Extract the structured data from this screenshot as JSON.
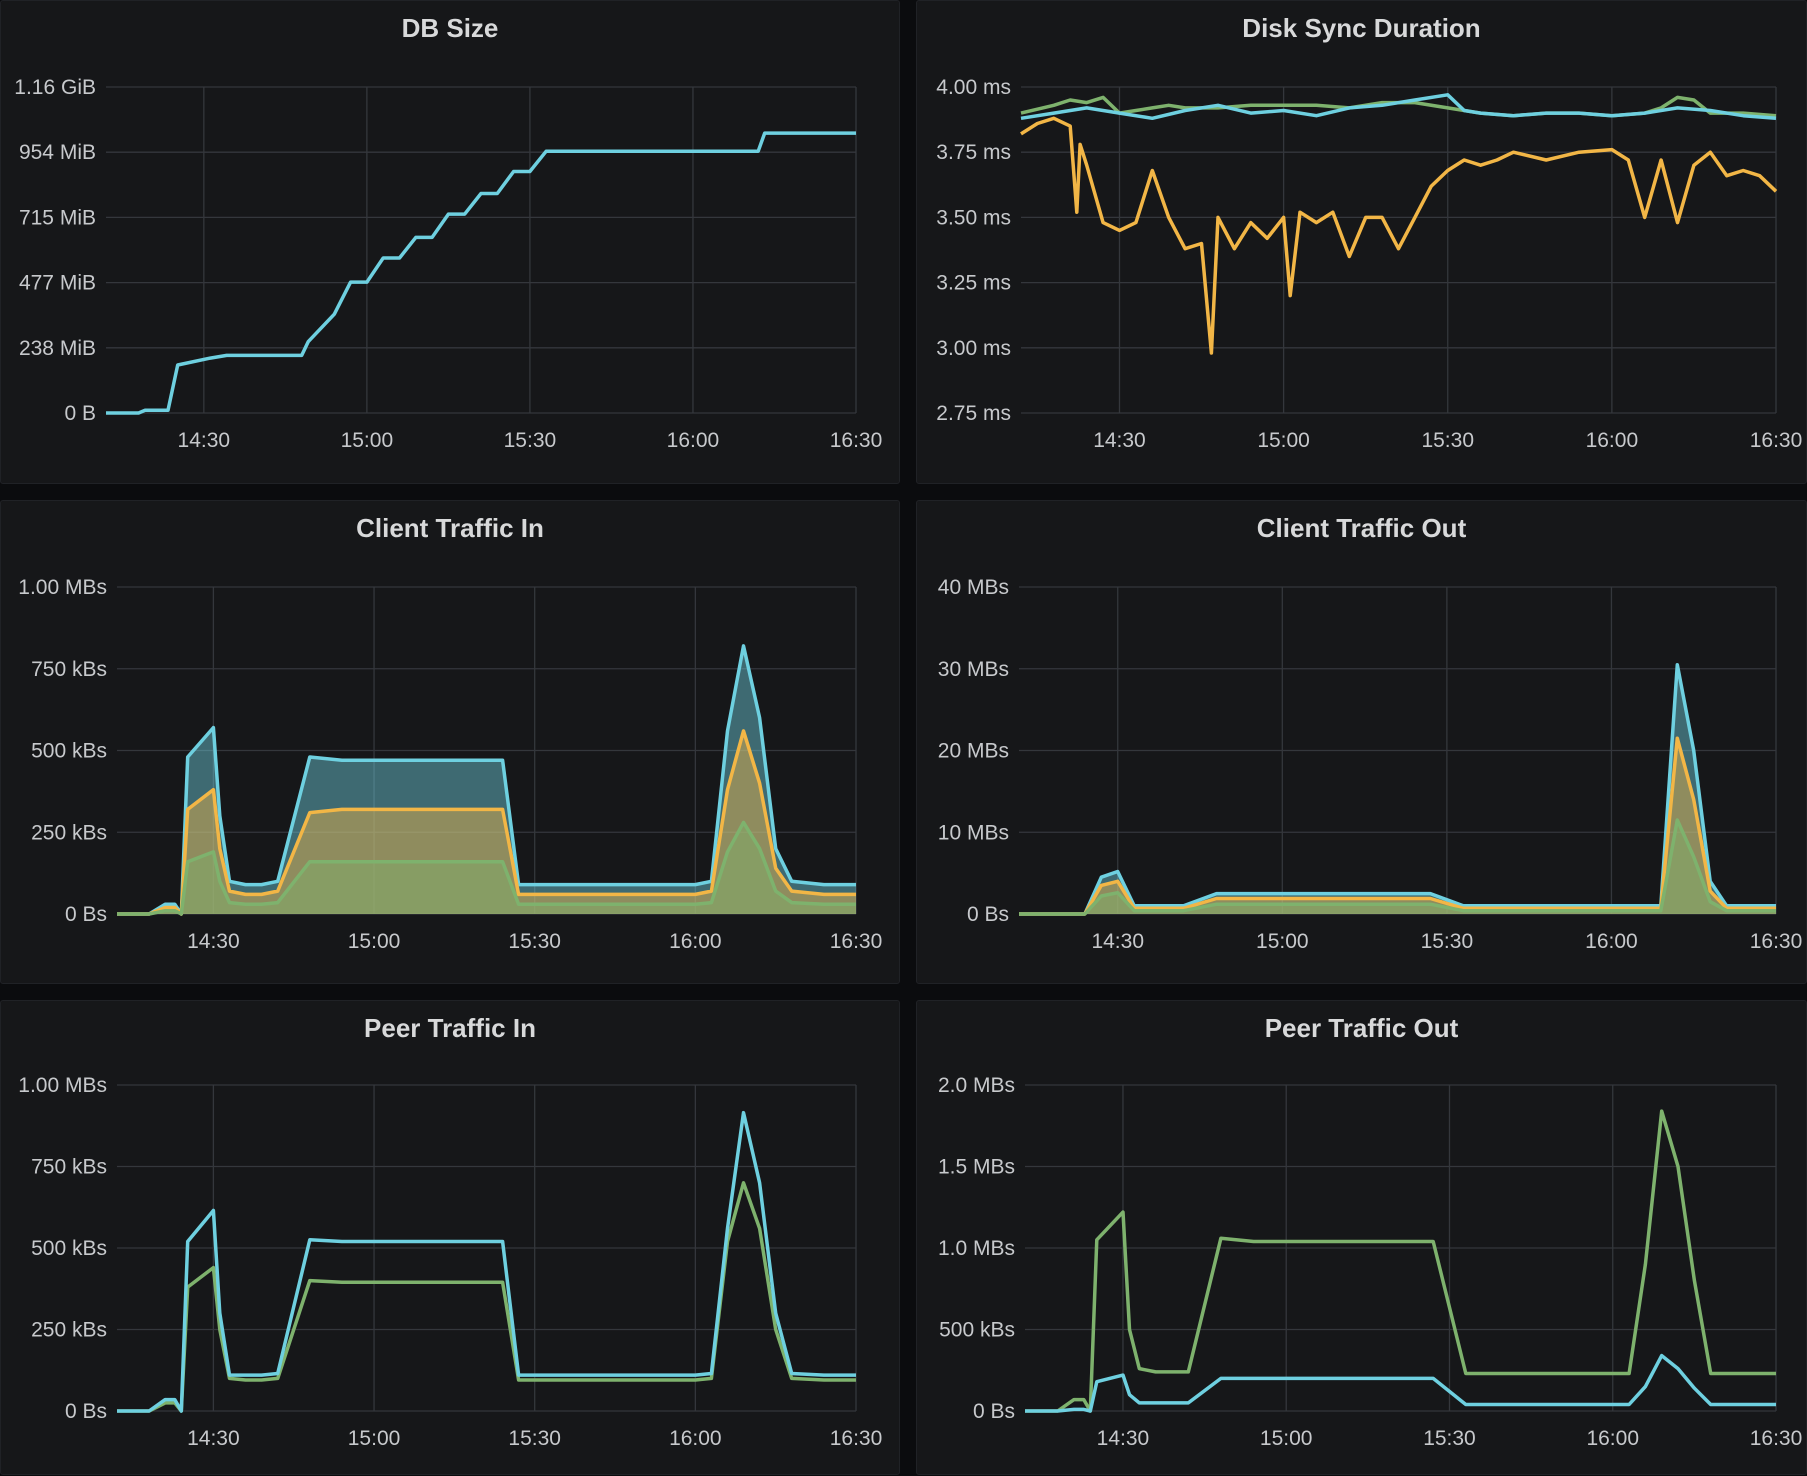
{
  "colors": {
    "cyan": "#6ed0e0",
    "orange": "#f2b646",
    "green": "#7eb26d",
    "grid": "#34373c",
    "text": "#c7c9cc"
  },
  "chart_data": [
    {
      "type": "line",
      "title": "DB Size",
      "xlabel": "",
      "ylabel": "",
      "xticks": [
        "14:30",
        "15:00",
        "15:30",
        "16:00",
        "16:30"
      ],
      "yticks": [
        "0 B",
        "238 MiB",
        "477 MiB",
        "715 MiB",
        "954 MiB",
        "1.16 GiB"
      ],
      "xlim": [
        14.2,
        16.5
      ],
      "ylim": [
        0,
        1188
      ],
      "fill": false,
      "series": [
        {
          "color": "#6ed0e0",
          "x": [
            14.2,
            14.3,
            14.32,
            14.39,
            14.42,
            14.52,
            14.57,
            14.58,
            14.7,
            14.8,
            14.82,
            14.9,
            14.95,
            15,
            15.05,
            15.1,
            15.15,
            15.2,
            15.25,
            15.3,
            15.35,
            15.4,
            15.45,
            15.5,
            15.55,
            15.65,
            16.2,
            16.22,
            16.5
          ],
          "y": [
            0,
            0,
            10,
            10,
            175,
            200,
            210,
            210,
            210,
            210,
            260,
            360,
            477,
            477,
            565,
            565,
            640,
            640,
            725,
            725,
            800,
            800,
            880,
            880,
            954,
            954,
            954,
            1020,
            1020
          ]
        }
      ]
    },
    {
      "type": "line",
      "title": "Disk Sync Duration",
      "xlabel": "",
      "ylabel": "",
      "xticks": [
        "14:30",
        "15:00",
        "15:30",
        "16:00",
        "16:30"
      ],
      "yticks": [
        "2.75 ms",
        "3.00 ms",
        "3.25 ms",
        "3.50 ms",
        "3.75 ms",
        "4.00 ms"
      ],
      "xlim": [
        14.2,
        16.5
      ],
      "ylim": [
        2.75,
        4.0
      ],
      "fill": false,
      "series": [
        {
          "color": "#7eb26d",
          "x": [
            14.2,
            14.3,
            14.35,
            14.4,
            14.45,
            14.5,
            14.55,
            14.6,
            14.65,
            14.7,
            14.8,
            14.9,
            15,
            15.1,
            15.2,
            15.3,
            15.4,
            15.5,
            15.6,
            15.7,
            15.8,
            15.9,
            16,
            16.1,
            16.15,
            16.2,
            16.25,
            16.3,
            16.4,
            16.5
          ],
          "y": [
            3.9,
            3.93,
            3.95,
            3.94,
            3.96,
            3.9,
            3.91,
            3.92,
            3.93,
            3.92,
            3.92,
            3.93,
            3.93,
            3.93,
            3.92,
            3.94,
            3.94,
            3.92,
            3.9,
            3.89,
            3.9,
            3.9,
            3.89,
            3.9,
            3.92,
            3.96,
            3.95,
            3.9,
            3.9,
            3.89
          ]
        },
        {
          "color": "#6ed0e0",
          "x": [
            14.2,
            14.3,
            14.4,
            14.5,
            14.6,
            14.7,
            14.8,
            14.9,
            15,
            15.1,
            15.2,
            15.3,
            15.4,
            15.5,
            15.55,
            15.6,
            15.7,
            15.8,
            15.9,
            16,
            16.1,
            16.2,
            16.3,
            16.4,
            16.5
          ],
          "y": [
            3.88,
            3.9,
            3.92,
            3.9,
            3.88,
            3.91,
            3.93,
            3.9,
            3.91,
            3.89,
            3.92,
            3.93,
            3.95,
            3.97,
            3.91,
            3.9,
            3.89,
            3.9,
            3.9,
            3.89,
            3.9,
            3.92,
            3.91,
            3.89,
            3.88
          ]
        },
        {
          "color": "#f2b646",
          "x": [
            14.2,
            14.25,
            14.3,
            14.35,
            14.37,
            14.38,
            14.4,
            14.45,
            14.5,
            14.55,
            14.6,
            14.65,
            14.7,
            14.75,
            14.78,
            14.8,
            14.85,
            14.9,
            14.95,
            15,
            15.02,
            15.05,
            15.1,
            15.15,
            15.2,
            15.25,
            15.3,
            15.35,
            15.4,
            15.45,
            15.5,
            15.55,
            15.6,
            15.65,
            15.7,
            15.8,
            15.9,
            16,
            16.05,
            16.1,
            16.15,
            16.2,
            16.25,
            16.3,
            16.35,
            16.4,
            16.45,
            16.5
          ],
          "y": [
            3.82,
            3.86,
            3.88,
            3.85,
            3.52,
            3.78,
            3.7,
            3.48,
            3.45,
            3.48,
            3.68,
            3.5,
            3.38,
            3.4,
            2.98,
            3.5,
            3.38,
            3.48,
            3.42,
            3.5,
            3.2,
            3.52,
            3.48,
            3.52,
            3.35,
            3.5,
            3.5,
            3.38,
            3.5,
            3.62,
            3.68,
            3.72,
            3.7,
            3.72,
            3.75,
            3.72,
            3.75,
            3.76,
            3.72,
            3.5,
            3.72,
            3.48,
            3.7,
            3.75,
            3.66,
            3.68,
            3.66,
            3.6
          ]
        }
      ]
    },
    {
      "type": "area",
      "title": "Client Traffic In",
      "xlabel": "",
      "ylabel": "",
      "xticks": [
        "14:30",
        "15:00",
        "15:30",
        "16:00",
        "16:30"
      ],
      "yticks": [
        "0 Bs",
        "250 kBs",
        "500 kBs",
        "750 kBs",
        "1.00 MBs"
      ],
      "xlim": [
        14.2,
        16.5
      ],
      "ylim": [
        0,
        1000
      ],
      "fill": true,
      "series": [
        {
          "color": "#6ed0e0",
          "x": [
            14.2,
            14.3,
            14.35,
            14.38,
            14.4,
            14.42,
            14.5,
            14.52,
            14.55,
            14.6,
            14.65,
            14.7,
            14.8,
            14.9,
            15,
            15.1,
            15.2,
            15.3,
            15.35,
            15.4,
            15.45,
            15.55,
            15.7,
            15.9,
            16,
            16.05,
            16.1,
            16.15,
            16.2,
            16.25,
            16.3,
            16.4,
            16.5
          ],
          "y": [
            0,
            0,
            30,
            30,
            0,
            480,
            570,
            300,
            100,
            90,
            90,
            100,
            480,
            470,
            470,
            470,
            470,
            470,
            470,
            470,
            90,
            90,
            90,
            90,
            90,
            100,
            560,
            820,
            600,
            200,
            100,
            90,
            90
          ]
        },
        {
          "color": "#f2b646",
          "x": [
            14.2,
            14.3,
            14.35,
            14.38,
            14.4,
            14.42,
            14.5,
            14.52,
            14.55,
            14.6,
            14.65,
            14.7,
            14.8,
            14.9,
            15,
            15.1,
            15.2,
            15.3,
            15.35,
            15.4,
            15.45,
            15.55,
            15.7,
            15.9,
            16,
            16.05,
            16.1,
            16.15,
            16.2,
            16.25,
            16.3,
            16.4,
            16.5
          ],
          "y": [
            0,
            0,
            20,
            20,
            0,
            320,
            380,
            200,
            70,
            60,
            60,
            70,
            310,
            320,
            320,
            320,
            320,
            320,
            320,
            320,
            60,
            60,
            60,
            60,
            60,
            70,
            380,
            560,
            400,
            140,
            70,
            60,
            60
          ]
        },
        {
          "color": "#7eb26d",
          "x": [
            14.2,
            14.3,
            14.35,
            14.38,
            14.4,
            14.42,
            14.5,
            14.52,
            14.55,
            14.6,
            14.65,
            14.7,
            14.8,
            14.9,
            15,
            15.1,
            15.2,
            15.3,
            15.35,
            15.4,
            15.45,
            15.55,
            15.7,
            15.9,
            16,
            16.05,
            16.1,
            16.15,
            16.2,
            16.25,
            16.3,
            16.4,
            16.5
          ],
          "y": [
            0,
            0,
            10,
            10,
            0,
            160,
            190,
            100,
            35,
            30,
            30,
            35,
            160,
            160,
            160,
            160,
            160,
            160,
            160,
            160,
            30,
            30,
            30,
            30,
            30,
            35,
            190,
            280,
            200,
            70,
            35,
            30,
            30
          ]
        }
      ]
    },
    {
      "type": "area",
      "title": "Client Traffic Out",
      "xlabel": "",
      "ylabel": "",
      "xticks": [
        "14:30",
        "15:00",
        "15:30",
        "16:00",
        "16:30"
      ],
      "yticks": [
        "0 Bs",
        "10 MBs",
        "20 MBs",
        "30 MBs",
        "40 MBs"
      ],
      "xlim": [
        14.2,
        16.5
      ],
      "ylim": [
        0,
        40
      ],
      "fill": true,
      "series": [
        {
          "color": "#6ed0e0",
          "x": [
            14.2,
            14.4,
            14.45,
            14.5,
            14.55,
            14.7,
            14.8,
            14.9,
            15.3,
            15.45,
            15.55,
            15.9,
            16.05,
            16.15,
            16.2,
            16.25,
            16.3,
            16.35,
            16.4,
            16.5
          ],
          "y": [
            0,
            0,
            4.5,
            5.2,
            1,
            1,
            2.5,
            2.5,
            2.5,
            2.5,
            1,
            1,
            1,
            1,
            30.5,
            20,
            4,
            1,
            1,
            1
          ]
        },
        {
          "color": "#f2b646",
          "x": [
            14.2,
            14.4,
            14.45,
            14.5,
            14.55,
            14.7,
            14.8,
            14.9,
            15.3,
            15.45,
            15.55,
            15.9,
            16.05,
            16.15,
            16.2,
            16.25,
            16.3,
            16.35,
            16.4,
            16.5
          ],
          "y": [
            0,
            0,
            3.5,
            4,
            0.7,
            0.7,
            1.9,
            1.9,
            1.9,
            1.9,
            0.7,
            0.7,
            0.7,
            0.7,
            21.5,
            14,
            2.8,
            0.7,
            0.7,
            0.7
          ]
        },
        {
          "color": "#7eb26d",
          "x": [
            14.2,
            14.4,
            14.45,
            14.5,
            14.55,
            14.7,
            14.8,
            14.9,
            15.3,
            15.45,
            15.55,
            15.9,
            16.05,
            16.15,
            16.2,
            16.25,
            16.3,
            16.35,
            16.4,
            16.5
          ],
          "y": [
            0,
            0,
            2.2,
            2.6,
            0.4,
            0.4,
            1.2,
            1.2,
            1.2,
            1.2,
            0.4,
            0.4,
            0.4,
            0.4,
            11.5,
            7,
            1.5,
            0.4,
            0.4,
            0.4
          ]
        }
      ]
    },
    {
      "type": "line",
      "title": "Peer Traffic In",
      "xlabel": "",
      "ylabel": "",
      "xticks": [
        "14:30",
        "15:00",
        "15:30",
        "16:00",
        "16:30"
      ],
      "yticks": [
        "0 Bs",
        "250 kBs",
        "500 kBs",
        "750 kBs",
        "1.00 MBs"
      ],
      "xlim": [
        14.2,
        16.5
      ],
      "ylim": [
        0,
        1000
      ],
      "fill": false,
      "series": [
        {
          "color": "#7eb26d",
          "x": [
            14.2,
            14.3,
            14.35,
            14.38,
            14.4,
            14.42,
            14.5,
            14.52,
            14.55,
            14.6,
            14.65,
            14.7,
            14.8,
            14.9,
            15,
            15.1,
            15.2,
            15.3,
            15.35,
            15.4,
            15.45,
            15.55,
            15.7,
            15.9,
            16,
            16.05,
            16.1,
            16.15,
            16.2,
            16.25,
            16.3,
            16.4,
            16.5
          ],
          "y": [
            0,
            0,
            25,
            25,
            0,
            380,
            440,
            250,
            100,
            95,
            95,
            100,
            400,
            395,
            395,
            395,
            395,
            395,
            395,
            395,
            95,
            95,
            95,
            95,
            95,
            100,
            520,
            700,
            560,
            250,
            100,
            95,
            95
          ]
        },
        {
          "color": "#6ed0e0",
          "x": [
            14.2,
            14.3,
            14.35,
            14.38,
            14.4,
            14.42,
            14.5,
            14.52,
            14.55,
            14.6,
            14.65,
            14.7,
            14.8,
            14.9,
            15,
            15.1,
            15.2,
            15.3,
            15.35,
            15.4,
            15.45,
            15.55,
            15.7,
            15.9,
            16,
            16.05,
            16.1,
            16.15,
            16.2,
            16.25,
            16.3,
            16.4,
            16.5
          ],
          "y": [
            0,
            0,
            35,
            35,
            0,
            520,
            615,
            300,
            110,
            110,
            110,
            115,
            525,
            520,
            520,
            520,
            520,
            520,
            520,
            520,
            110,
            110,
            110,
            110,
            110,
            115,
            560,
            915,
            700,
            300,
            115,
            110,
            110
          ]
        }
      ]
    },
    {
      "type": "line",
      "title": "Peer Traffic Out",
      "xlabel": "",
      "ylabel": "",
      "xticks": [
        "14:30",
        "15:00",
        "15:30",
        "16:00",
        "16:30"
      ],
      "yticks": [
        "0 Bs",
        "500 kBs",
        "1.0 MBs",
        "1.5 MBs",
        "2.0 MBs"
      ],
      "xlim": [
        14.2,
        16.5
      ],
      "ylim": [
        0,
        2000
      ],
      "fill": false,
      "series": [
        {
          "color": "#7eb26d",
          "x": [
            14.2,
            14.3,
            14.35,
            14.38,
            14.4,
            14.42,
            14.5,
            14.52,
            14.55,
            14.6,
            14.7,
            14.8,
            14.9,
            15,
            15.1,
            15.2,
            15.3,
            15.4,
            15.45,
            15.55,
            15.7,
            15.9,
            16,
            16.05,
            16.1,
            16.15,
            16.2,
            16.25,
            16.3,
            16.4,
            16.5
          ],
          "y": [
            0,
            0,
            70,
            70,
            0,
            1050,
            1220,
            500,
            260,
            240,
            240,
            1060,
            1040,
            1040,
            1040,
            1040,
            1040,
            1040,
            1040,
            230,
            230,
            230,
            230,
            230,
            900,
            1840,
            1500,
            800,
            230,
            230,
            230
          ]
        },
        {
          "color": "#6ed0e0",
          "x": [
            14.2,
            14.3,
            14.35,
            14.38,
            14.4,
            14.42,
            14.5,
            14.52,
            14.55,
            14.6,
            14.7,
            14.8,
            14.9,
            15,
            15.1,
            15.2,
            15.3,
            15.4,
            15.45,
            15.55,
            15.7,
            15.9,
            16,
            16.05,
            16.1,
            16.15,
            16.2,
            16.25,
            16.3,
            16.4,
            16.5
          ],
          "y": [
            0,
            0,
            10,
            10,
            0,
            180,
            220,
            100,
            50,
            50,
            50,
            200,
            200,
            200,
            200,
            200,
            200,
            200,
            200,
            40,
            40,
            40,
            40,
            40,
            150,
            340,
            260,
            140,
            40,
            40,
            40
          ]
        }
      ]
    }
  ]
}
